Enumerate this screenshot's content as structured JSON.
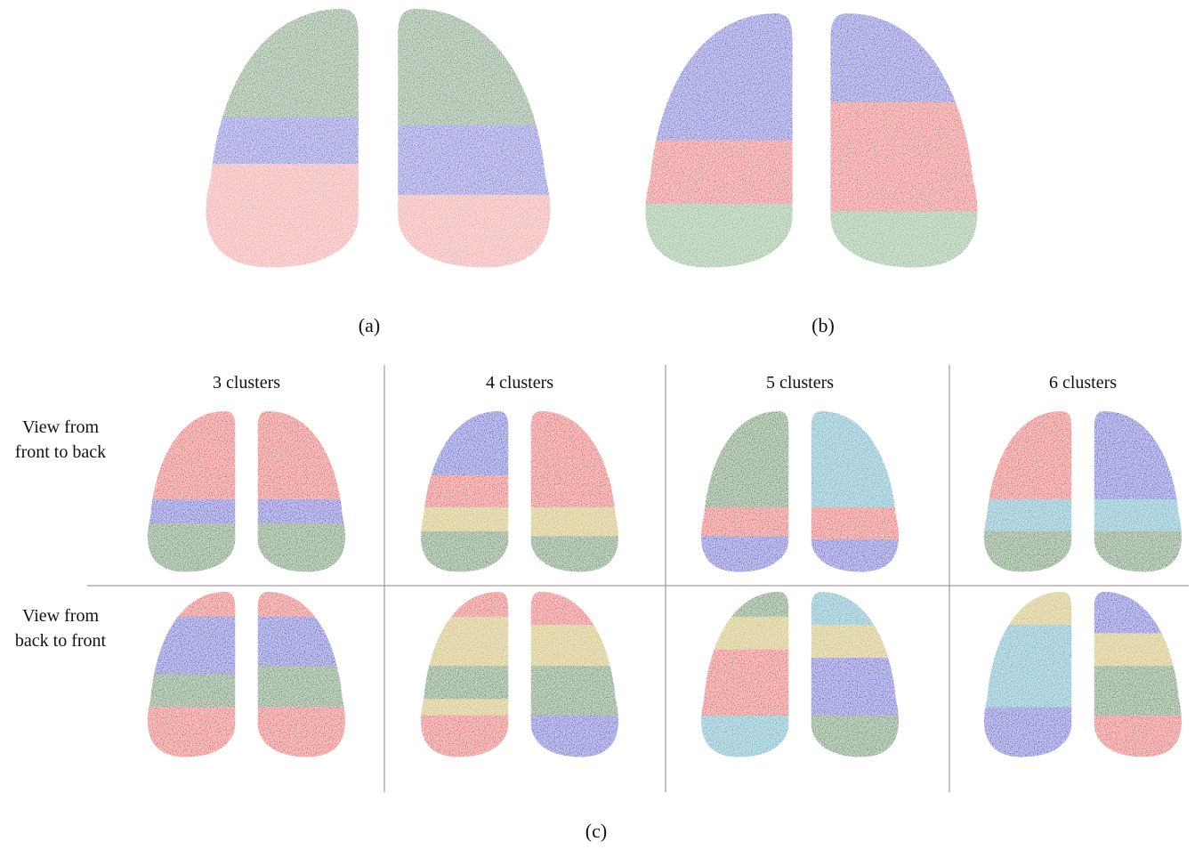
{
  "panels": {
    "a": {
      "label": "(a)"
    },
    "b": {
      "label": "(b)"
    },
    "c": {
      "label": "(c)",
      "columns": [
        "3 clusters",
        "4 clusters",
        "5 clusters",
        "6 clusters"
      ],
      "rows": [
        [
          "View from",
          "front to back"
        ],
        [
          "View from",
          "back to front"
        ]
      ]
    }
  }
}
